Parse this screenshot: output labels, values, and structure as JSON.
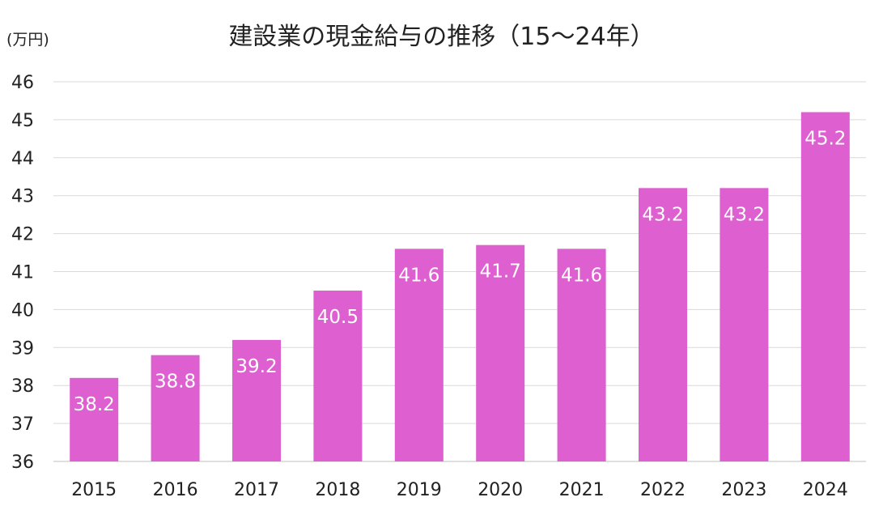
{
  "chart_data": {
    "type": "bar",
    "title": "建設業の現金給与の推移（15～24年）",
    "ylabel": "(万円)",
    "xlabel": "",
    "categories": [
      "2015",
      "2016",
      "2017",
      "2018",
      "2019",
      "2020",
      "2021",
      "2022",
      "2023",
      "2024"
    ],
    "values": [
      38.2,
      38.8,
      39.2,
      40.5,
      41.6,
      41.7,
      41.6,
      43.2,
      43.2,
      45.2
    ],
    "data_labels": [
      "38.2",
      "38.8",
      "39.2",
      "40.5",
      "41.6",
      "41.7",
      "41.6",
      "43.2",
      "43.2",
      "45.2"
    ],
    "ylim": [
      36,
      46
    ],
    "yticks": [
      "36",
      "37",
      "38",
      "39",
      "40",
      "41",
      "42",
      "43",
      "44",
      "45",
      "46"
    ],
    "grid": true,
    "legend": "none",
    "bar_color": "#dd5fd0"
  }
}
